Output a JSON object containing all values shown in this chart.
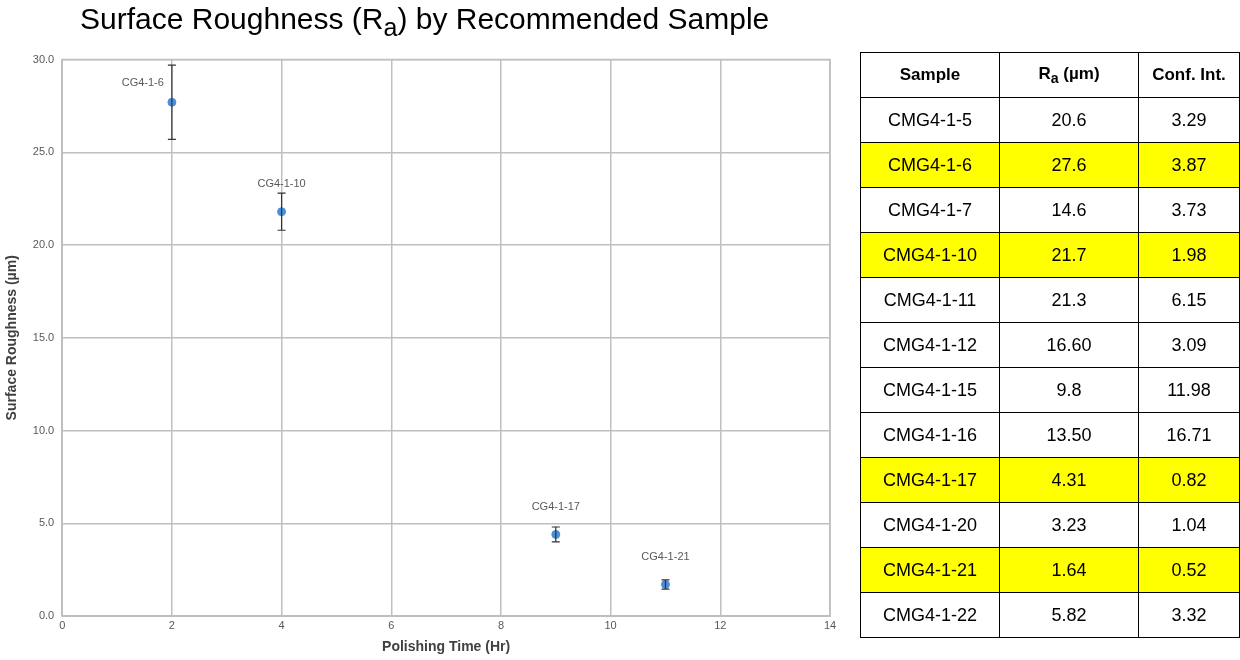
{
  "chart_data": [
    {
      "type": "scatter",
      "title": "Surface Roughness (R$_{a}$) by Recommended Sample",
      "xlabel": "Polishing Time (Hr)",
      "ylabel": "Surface Roughness (µm)",
      "x": [
        2,
        4,
        9,
        11
      ],
      "series": [
        {
          "color": "#4a90d9",
          "values": [
            27.7,
            21.8,
            4.4,
            1.7
          ],
          "errors": [
            2.0,
            1.0,
            0.4,
            0.25
          ]
        }
      ],
      "xlim": [
        0,
        14
      ],
      "xticks": [
        0,
        2,
        4,
        6,
        8,
        10,
        12,
        14
      ],
      "ylim": [
        0,
        30
      ],
      "yticks": [
        {
          "value": 0,
          "label": "0.0"
        },
        {
          "value": 5,
          "label": "5.0"
        },
        {
          "value": 10,
          "label": "10.0"
        },
        {
          "value": 15,
          "label": "15.0"
        },
        {
          "value": 20,
          "label": "20.0"
        },
        {
          "value": 25,
          "label": "25.0"
        },
        {
          "value": 30,
          "label": "30.0"
        }
      ],
      "grid": true,
      "legend": false,
      "marker": "circle",
      "annotations": [
        {
          "text": "CG4-1-6",
          "x": 2,
          "y": 27.7
        },
        {
          "text": "CG4-1-10",
          "x": 4,
          "y": 21.8
        },
        {
          "text": "CG4-1-17",
          "x": 9,
          "y": 4.4
        },
        {
          "text": "CG4-1-21",
          "x": 11,
          "y": 1.7
        }
      ]
    },
    {
      "type": "other",
      "annotations": [
        "Sample",
        "R$_{a}$ (µm)",
        "Conf. Int.",
        "CMG4-1-5",
        "20.6",
        "3.29",
        "CMG4-1-6",
        "27.6",
        "3.87",
        "CMG4-1-7",
        "14.6",
        "3.73",
        "CMG4-1-10",
        "21.7",
        "1.98",
        "CMG4-1-11",
        "21.3",
        "6.15",
        "CMG4-1-12",
        "16.60",
        "3.09",
        "CMG4-1-15",
        "9.8",
        "11.98",
        "CMG4-1-16",
        "13.50",
        "16.71",
        "CMG4-1-17",
        "4.31",
        "0.82",
        "CMG4-1-20",
        "3.23",
        "1.04",
        "CMG4-1-21",
        "1.64",
        "0.52",
        "CMG4-1-22",
        "5.82",
        "3.32"
      ],
      "colors": [
        "#ffffff",
        "#ffffff",
        "#ffff00",
        "#ffffff",
        "#ffff00",
        "#ffffff",
        "#ffffff",
        "#ffffff",
        "#ffffff",
        "#ffff00",
        "#ffffff",
        "#ffff00",
        "#ffffff"
      ]
    }
  ]
}
